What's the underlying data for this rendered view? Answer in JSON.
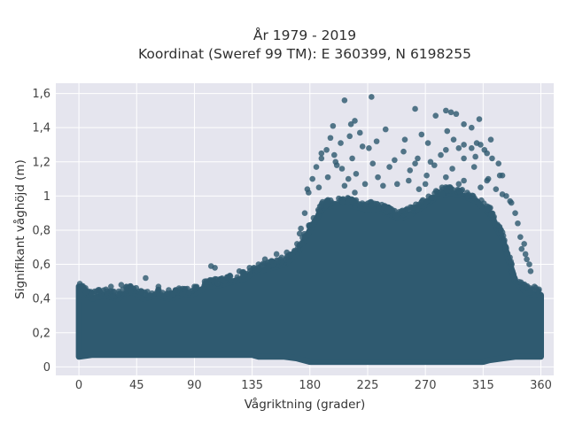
{
  "chart_data": {
    "type": "scatter",
    "title": "År 1979 - 2019",
    "subtitle": "Koordinat (Sweref 99 TM): E 360399, N 6198255",
    "xlabel": "Vågriktning (grader)",
    "ylabel": "Signifikant våghöjd (m)",
    "xlim": [
      -18,
      370
    ],
    "ylim": [
      -0.05,
      1.66
    ],
    "xticks": [
      0,
      45,
      90,
      135,
      180,
      225,
      270,
      315,
      360
    ],
    "xtick_labels": [
      "0",
      "45",
      "90",
      "135",
      "180",
      "225",
      "270",
      "315",
      "360"
    ],
    "yticks": [
      0,
      0.2,
      0.4,
      0.6,
      0.8,
      1.0,
      1.2,
      1.4,
      1.6
    ],
    "ytick_labels": [
      "0",
      "0,2",
      "0,4",
      "0,6",
      "0,8",
      "1",
      "1,2",
      "1,4",
      "1,6"
    ],
    "grid": true,
    "marker_color": "#2f5a70",
    "background_color": "#e5e5ee",
    "envelope": {
      "x": [
        0,
        10,
        20,
        30,
        40,
        45,
        50,
        60,
        70,
        80,
        90,
        100,
        110,
        120,
        130,
        135,
        140,
        150,
        160,
        170,
        180,
        190,
        200,
        210,
        220,
        225,
        230,
        240,
        250,
        260,
        270,
        280,
        290,
        300,
        310,
        315,
        320,
        330,
        340,
        350,
        360
      ],
      "upper": [
        0.47,
        0.4,
        0.42,
        0.4,
        0.44,
        0.43,
        0.4,
        0.42,
        0.4,
        0.42,
        0.43,
        0.47,
        0.48,
        0.5,
        0.52,
        0.55,
        0.56,
        0.58,
        0.6,
        0.66,
        0.8,
        0.93,
        0.95,
        0.95,
        0.93,
        0.92,
        0.93,
        0.9,
        0.87,
        0.9,
        0.95,
        1.0,
        1.02,
        1.0,
        0.97,
        0.93,
        0.9,
        0.75,
        0.5,
        0.43,
        0.42
      ],
      "lower": [
        0.06,
        0.07,
        0.07,
        0.07,
        0.07,
        0.07,
        0.07,
        0.07,
        0.07,
        0.07,
        0.07,
        0.07,
        0.07,
        0.07,
        0.07,
        0.07,
        0.06,
        0.06,
        0.06,
        0.05,
        0.03,
        0.03,
        0.03,
        0.03,
        0.03,
        0.03,
        0.03,
        0.03,
        0.03,
        0.03,
        0.03,
        0.03,
        0.03,
        0.03,
        0.03,
        0.03,
        0.04,
        0.05,
        0.06,
        0.06,
        0.06
      ]
    },
    "outlier_points": [
      {
        "x": 207,
        "y": 1.56
      },
      {
        "x": 228,
        "y": 1.58
      },
      {
        "x": 262,
        "y": 1.51
      },
      {
        "x": 286,
        "y": 1.5
      },
      {
        "x": 290,
        "y": 1.49
      },
      {
        "x": 294,
        "y": 1.48
      },
      {
        "x": 278,
        "y": 1.47
      },
      {
        "x": 312,
        "y": 1.45
      },
      {
        "x": 212,
        "y": 1.42
      },
      {
        "x": 198,
        "y": 1.41
      },
      {
        "x": 215,
        "y": 1.44
      },
      {
        "x": 239,
        "y": 1.39
      },
      {
        "x": 300,
        "y": 1.42
      },
      {
        "x": 287,
        "y": 1.38
      },
      {
        "x": 306,
        "y": 1.4
      },
      {
        "x": 219,
        "y": 1.37
      },
      {
        "x": 267,
        "y": 1.36
      },
      {
        "x": 211,
        "y": 1.35
      },
      {
        "x": 196,
        "y": 1.34
      },
      {
        "x": 254,
        "y": 1.33
      },
      {
        "x": 232,
        "y": 1.32
      },
      {
        "x": 292,
        "y": 1.33
      },
      {
        "x": 321,
        "y": 1.33
      },
      {
        "x": 204,
        "y": 1.31
      },
      {
        "x": 272,
        "y": 1.31
      },
      {
        "x": 310,
        "y": 1.31
      },
      {
        "x": 313,
        "y": 1.3
      },
      {
        "x": 300,
        "y": 1.3
      },
      {
        "x": 221,
        "y": 1.29
      },
      {
        "x": 226,
        "y": 1.28
      },
      {
        "x": 296,
        "y": 1.28
      },
      {
        "x": 193,
        "y": 1.27
      },
      {
        "x": 286,
        "y": 1.27
      },
      {
        "x": 306,
        "y": 1.28
      },
      {
        "x": 316,
        "y": 1.27
      },
      {
        "x": 253,
        "y": 1.26
      },
      {
        "x": 189,
        "y": 1.25
      },
      {
        "x": 199,
        "y": 1.24
      },
      {
        "x": 282,
        "y": 1.24
      },
      {
        "x": 318,
        "y": 1.25
      },
      {
        "x": 189,
        "y": 1.22
      },
      {
        "x": 213,
        "y": 1.22
      },
      {
        "x": 246,
        "y": 1.21
      },
      {
        "x": 264,
        "y": 1.22
      },
      {
        "x": 300,
        "y": 1.22
      },
      {
        "x": 322,
        "y": 1.22
      },
      {
        "x": 309,
        "y": 1.23
      },
      {
        "x": 200,
        "y": 1.2
      },
      {
        "x": 229,
        "y": 1.19
      },
      {
        "x": 262,
        "y": 1.19
      },
      {
        "x": 274,
        "y": 1.2
      },
      {
        "x": 327,
        "y": 1.19
      },
      {
        "x": 201,
        "y": 1.18
      },
      {
        "x": 185,
        "y": 1.17
      },
      {
        "x": 242,
        "y": 1.17
      },
      {
        "x": 277,
        "y": 1.18
      },
      {
        "x": 291,
        "y": 1.16
      },
      {
        "x": 205,
        "y": 1.16
      },
      {
        "x": 308,
        "y": 1.17
      },
      {
        "x": 258,
        "y": 1.15
      },
      {
        "x": 330,
        "y": 1.12
      },
      {
        "x": 216,
        "y": 1.13
      },
      {
        "x": 271,
        "y": 1.12
      },
      {
        "x": 194,
        "y": 1.11
      },
      {
        "x": 233,
        "y": 1.11
      },
      {
        "x": 286,
        "y": 1.11
      },
      {
        "x": 328,
        "y": 1.12
      },
      {
        "x": 182,
        "y": 1.1
      },
      {
        "x": 210,
        "y": 1.1
      },
      {
        "x": 257,
        "y": 1.09
      },
      {
        "x": 300,
        "y": 1.09
      },
      {
        "x": 318,
        "y": 1.09
      },
      {
        "x": 319,
        "y": 1.1
      },
      {
        "x": 223,
        "y": 1.07
      },
      {
        "x": 248,
        "y": 1.07
      },
      {
        "x": 270,
        "y": 1.07
      },
      {
        "x": 296,
        "y": 1.07
      },
      {
        "x": 187,
        "y": 1.05
      },
      {
        "x": 207,
        "y": 1.06
      },
      {
        "x": 237,
        "y": 1.06
      },
      {
        "x": 283,
        "y": 1.05
      },
      {
        "x": 325,
        "y": 1.04
      },
      {
        "x": 178,
        "y": 1.04
      },
      {
        "x": 265,
        "y": 1.04
      },
      {
        "x": 313,
        "y": 1.05
      },
      {
        "x": 330,
        "y": 1.01
      },
      {
        "x": 333,
        "y": 1.0
      },
      {
        "x": 215,
        "y": 1.02
      },
      {
        "x": 179,
        "y": 1.02
      },
      {
        "x": 298,
        "y": 1.03
      },
      {
        "x": 336,
        "y": 0.97
      },
      {
        "x": 340,
        "y": 0.9
      },
      {
        "x": 337,
        "y": 0.96
      },
      {
        "x": 342,
        "y": 0.84
      },
      {
        "x": 344,
        "y": 0.76
      },
      {
        "x": 347,
        "y": 0.72
      },
      {
        "x": 345,
        "y": 0.69
      },
      {
        "x": 349,
        "y": 0.63
      },
      {
        "x": 351,
        "y": 0.6
      },
      {
        "x": 348,
        "y": 0.66
      },
      {
        "x": 352,
        "y": 0.56
      },
      {
        "x": 355,
        "y": 0.47
      },
      {
        "x": 357,
        "y": 0.45
      },
      {
        "x": 176,
        "y": 0.9
      },
      {
        "x": 173,
        "y": 0.81
      },
      {
        "x": 170,
        "y": 0.72
      },
      {
        "x": 168,
        "y": 0.68
      },
      {
        "x": 165,
        "y": 0.65
      },
      {
        "x": 172,
        "y": 0.78
      },
      {
        "x": 158,
        "y": 0.64
      },
      {
        "x": 150,
        "y": 0.62
      },
      {
        "x": 145,
        "y": 0.63
      },
      {
        "x": 154,
        "y": 0.66
      },
      {
        "x": 162,
        "y": 0.67
      },
      {
        "x": 140,
        "y": 0.6
      },
      {
        "x": 133,
        "y": 0.58
      },
      {
        "x": 128,
        "y": 0.55
      },
      {
        "x": 125,
        "y": 0.56
      },
      {
        "x": 118,
        "y": 0.53
      },
      {
        "x": 112,
        "y": 0.51
      },
      {
        "x": 103,
        "y": 0.59
      },
      {
        "x": 106,
        "y": 0.58
      },
      {
        "x": 98,
        "y": 0.5
      },
      {
        "x": 90,
        "y": 0.47
      },
      {
        "x": 52,
        "y": 0.52
      },
      {
        "x": 33,
        "y": 0.48
      },
      {
        "x": 25,
        "y": 0.47
      },
      {
        "x": 37,
        "y": 0.47
      },
      {
        "x": 15,
        "y": 0.45
      },
      {
        "x": 62,
        "y": 0.47
      },
      {
        "x": 70,
        "y": 0.45
      },
      {
        "x": 78,
        "y": 0.46
      }
    ]
  }
}
